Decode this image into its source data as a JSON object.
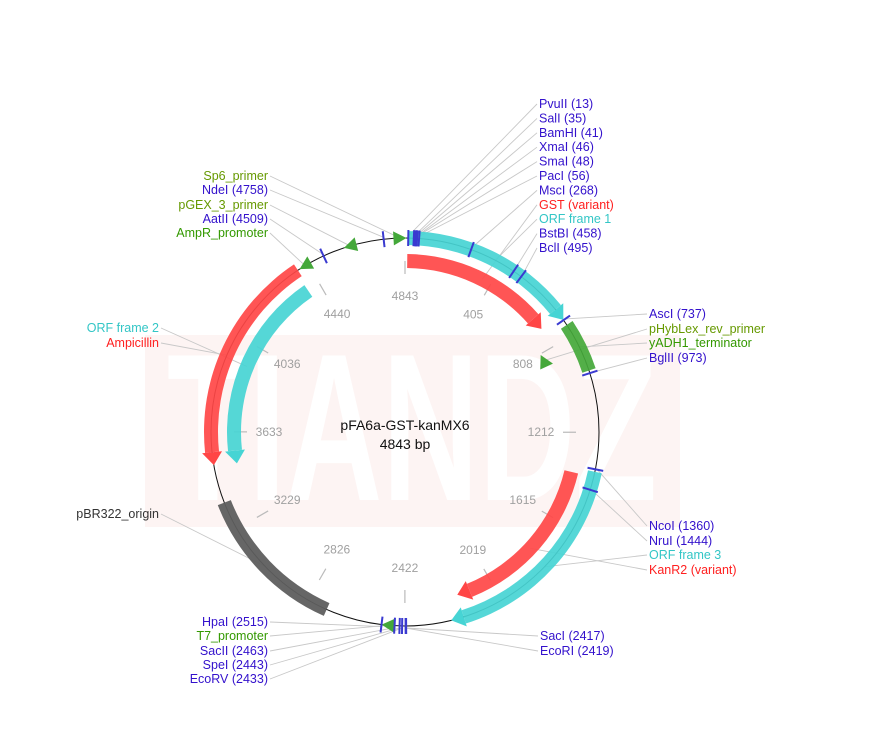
{
  "plasmid": {
    "name": "pFA6a-GST-kanMX6",
    "length": 4843,
    "length_label": "4843 bp"
  },
  "watermark": "TIANDZ",
  "colors": {
    "enzyme": "#3311cc",
    "enzyme_tick": "#3a3ad0",
    "red": "#ff4646",
    "cyan": "#46d4d4",
    "green": "#44a83a",
    "gray": "#5e5e5e",
    "feature_text": "#339900",
    "primer_text": "#669900",
    "orf_text": "#33c6c6",
    "red_text": "#ff2020",
    "dark_text": "#333333"
  },
  "ticks": [
    {
      "bp": 0,
      "label": "4843"
    },
    {
      "bp": 405,
      "label": "405"
    },
    {
      "bp": 808,
      "label": "808"
    },
    {
      "bp": 1212,
      "label": "1212"
    },
    {
      "bp": 1615,
      "label": "1615"
    },
    {
      "bp": 2019,
      "label": "2019"
    },
    {
      "bp": 2422,
      "label": "2422"
    },
    {
      "bp": 2826,
      "label": "2826"
    },
    {
      "bp": 3229,
      "label": "3229"
    },
    {
      "bp": 3633,
      "label": "3633"
    },
    {
      "bp": 4036,
      "label": "4036"
    },
    {
      "bp": 4440,
      "label": "4440"
    }
  ],
  "features": [
    {
      "label": "GST (variant)",
      "kind": "gene",
      "start": 10,
      "end": 712,
      "direction": "cw",
      "track": "inner",
      "color": "red",
      "text_color": "red_text"
    },
    {
      "label": "ORF frame 1",
      "kind": "orf",
      "start": 10,
      "end": 736,
      "direction": "cw",
      "track": "outer",
      "color": "cyan",
      "text_color": "orf_text"
    },
    {
      "label": "yADH1_terminator",
      "kind": "terminator",
      "start": 760,
      "end": 962,
      "direction": "none",
      "track": "outer",
      "color": "green",
      "text_color": "feature_text"
    },
    {
      "label": "Ampicillin",
      "kind": "gene",
      "start": 3500,
      "end": 4392,
      "direction": "ccw",
      "track": "outer",
      "color": "red",
      "text_color": "red_text"
    },
    {
      "label": "ORF frame 2",
      "kind": "orf",
      "start": 3490,
      "end": 4380,
      "direction": "ccw",
      "track": "inner",
      "color": "cyan",
      "text_color": "orf_text"
    },
    {
      "label": "pBR322_origin",
      "kind": "origin",
      "start": 2742,
      "end": 3345,
      "direction": "none",
      "track": "outer",
      "color": "gray",
      "text_color": "dark_text"
    },
    {
      "label": "KanR2 (variant)",
      "kind": "gene",
      "start": 1392,
      "end": 2182,
      "direction": "cw",
      "track": "inner",
      "color": "red",
      "text_color": "red_text"
    },
    {
      "label": "ORF frame 3",
      "kind": "orf",
      "start": 1370,
      "end": 2236,
      "direction": "cw",
      "track": "outer",
      "color": "cyan",
      "text_color": "orf_text"
    }
  ],
  "primers": [
    {
      "label": "pHybLex_rev_primer",
      "pos": 845,
      "direction": "ccw",
      "track": "primer-inner",
      "text_color": "primer_text"
    },
    {
      "label": "Sp6_primer",
      "pos": 4823,
      "direction": "cw",
      "track": "outer",
      "text_color": "primer_text"
    },
    {
      "label": "pGEX_3_primer",
      "pos": 4622,
      "direction": "ccw",
      "track": "outer",
      "text_color": "primer_text"
    },
    {
      "label": "AmpR_promoter",
      "pos": 4426,
      "direction": "ccw",
      "track": "outer",
      "text_color": "feature_text"
    },
    {
      "label": "T7_promoter",
      "pos": 2489,
      "direction": "cw",
      "track": "outer",
      "text_color": "feature_text"
    }
  ],
  "enzymes": [
    {
      "name": "PvuII",
      "pos": 13,
      "label": "PvuII (13)"
    },
    {
      "name": "SalI",
      "pos": 35,
      "label": "SalI (35)"
    },
    {
      "name": "BamHI",
      "pos": 41,
      "label": "BamHI (41)"
    },
    {
      "name": "XmaI",
      "pos": 46,
      "label": "XmaI (46)"
    },
    {
      "name": "SmaI",
      "pos": 48,
      "label": "SmaI (48)"
    },
    {
      "name": "PacI",
      "pos": 56,
      "label": "PacI (56)"
    },
    {
      "name": "MscI",
      "pos": 268,
      "label": "MscI (268)"
    },
    {
      "name": "BstBI",
      "pos": 458,
      "label": "BstBI (458)"
    },
    {
      "name": "BclI",
      "pos": 495,
      "label": "BclI (495)"
    },
    {
      "name": "AscI",
      "pos": 737,
      "label": "AscI (737)"
    },
    {
      "name": "BglII",
      "pos": 973,
      "label": "BglII (973)"
    },
    {
      "name": "NcoI",
      "pos": 1360,
      "label": "NcoI (1360)"
    },
    {
      "name": "NruI",
      "pos": 1444,
      "label": "NruI (1444)"
    },
    {
      "name": "SacI",
      "pos": 2417,
      "label": "SacI (2417)"
    },
    {
      "name": "EcoRI",
      "pos": 2419,
      "label": "EcoRI (2419)"
    },
    {
      "name": "EcoRV",
      "pos": 2433,
      "label": "EcoRV (2433)"
    },
    {
      "name": "SpeI",
      "pos": 2443,
      "label": "SpeI (2443)"
    },
    {
      "name": "SacII",
      "pos": 2463,
      "label": "SacII (2463)"
    },
    {
      "name": "HpaI",
      "pos": 2515,
      "label": "HpaI (2515)"
    },
    {
      "name": "AatII",
      "pos": 4509,
      "label": "AatII (4509)"
    },
    {
      "name": "NdeI",
      "pos": 4758,
      "label": "NdeI (4758)"
    }
  ]
}
